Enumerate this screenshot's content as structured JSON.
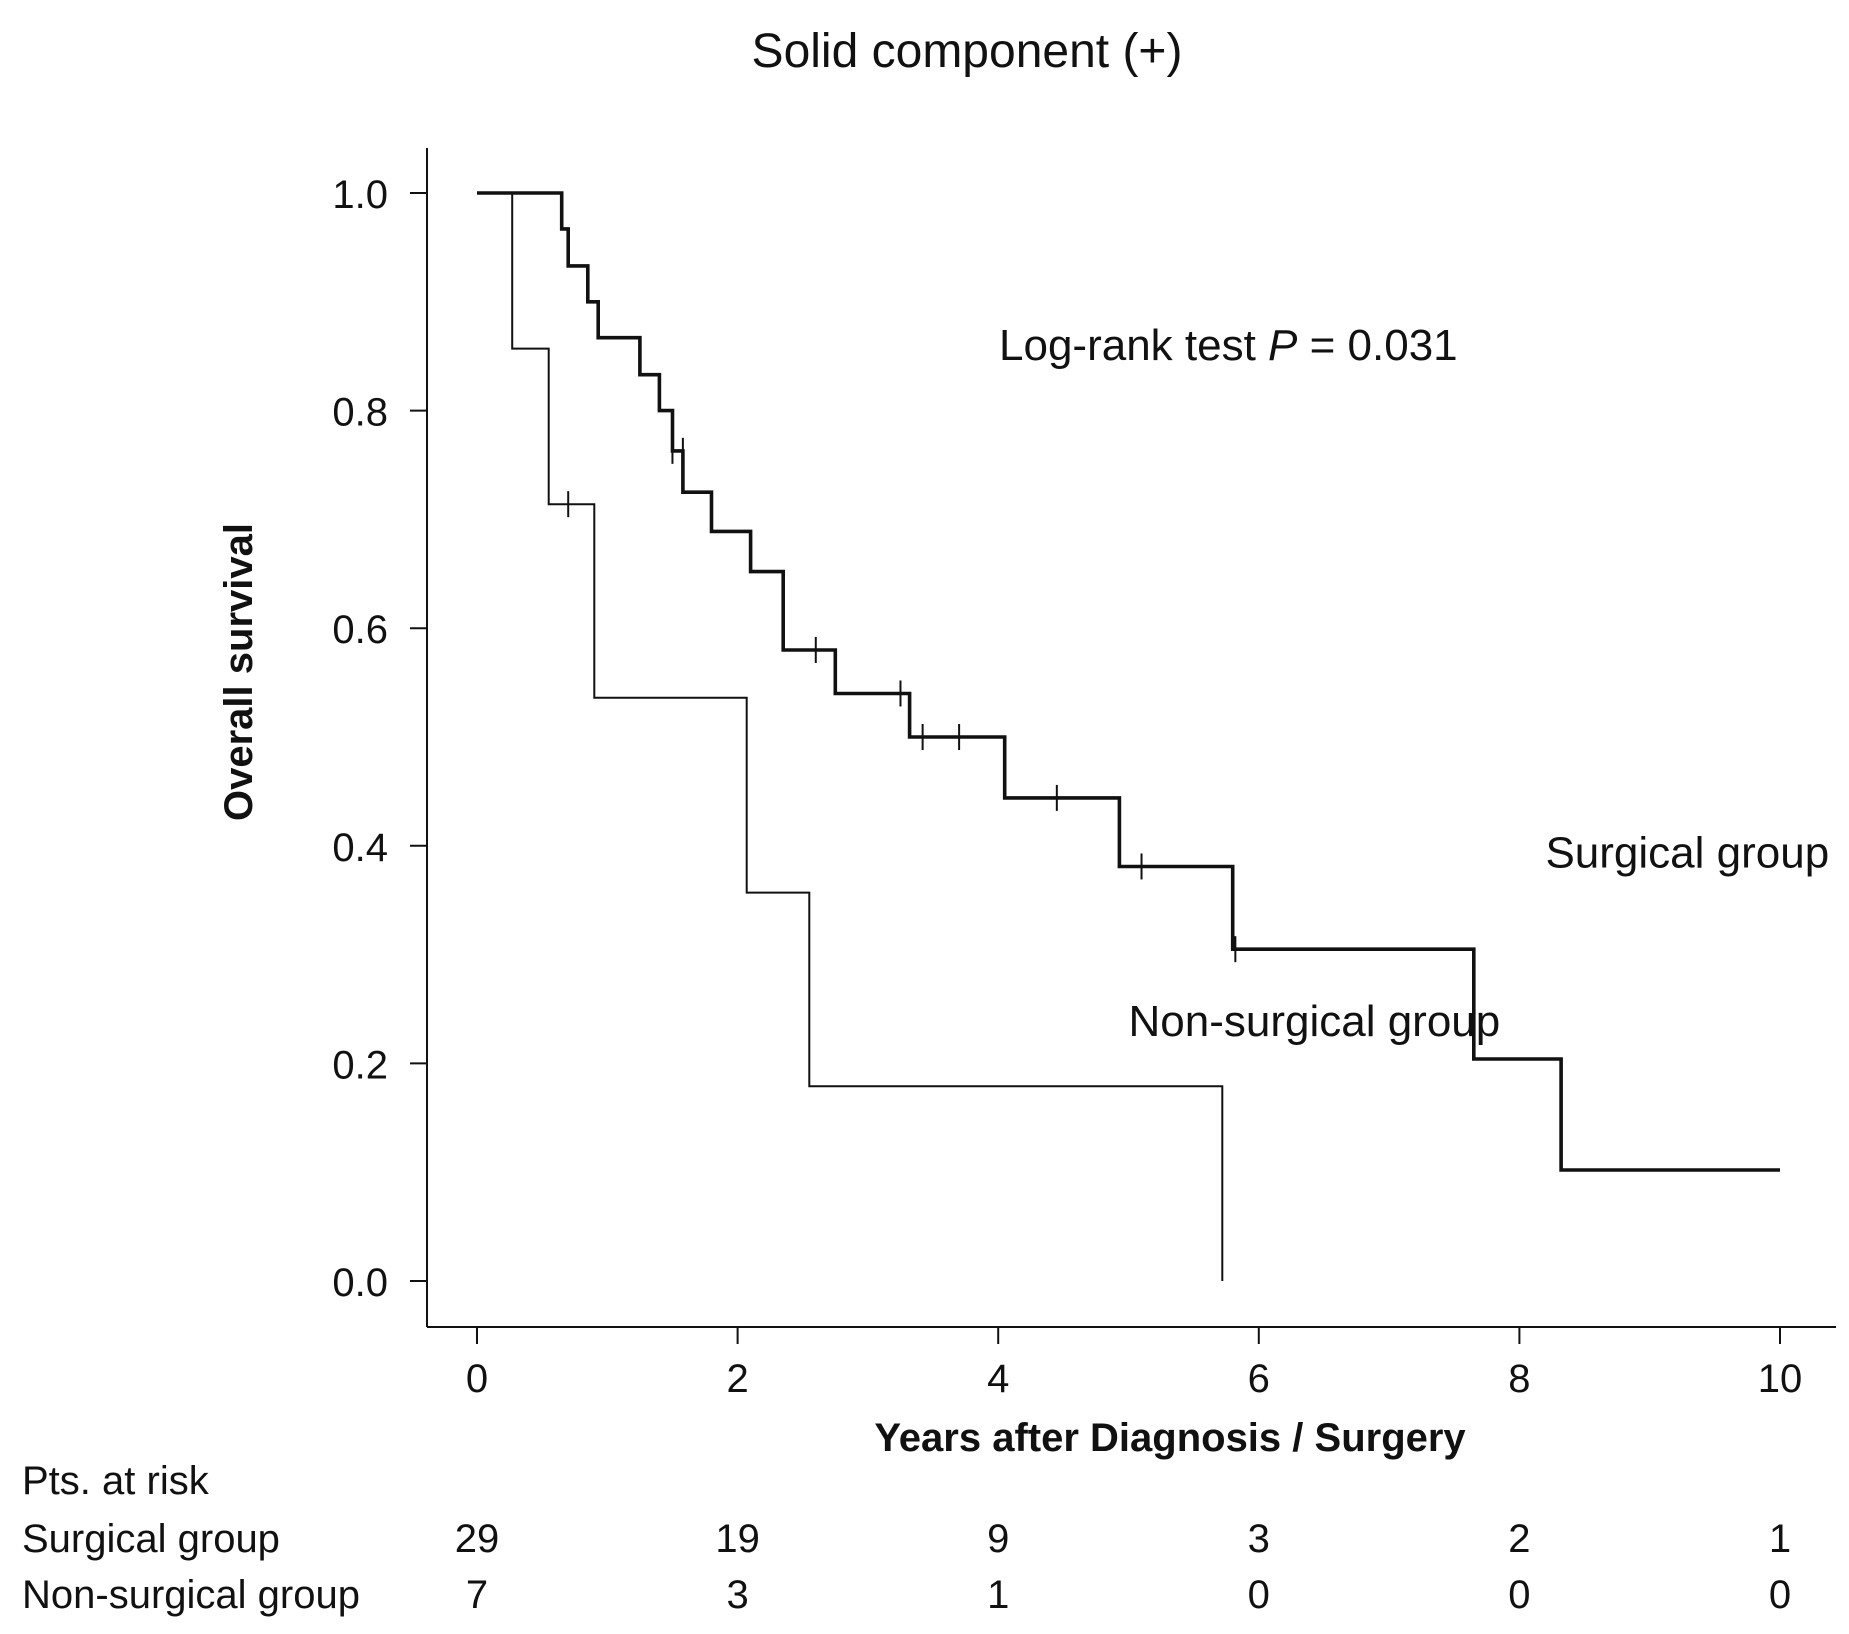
{
  "chart_data": {
    "type": "line",
    "subtype": "kaplan-meier",
    "title": "Solid component (+)",
    "xlabel": "Years after Diagnosis / Surgery",
    "ylabel": "Overall survival",
    "xlim": [
      0,
      10
    ],
    "ylim": [
      0,
      1
    ],
    "xticks": [
      "0",
      "2",
      "4",
      "6",
      "8",
      "10"
    ],
    "yticks": [
      "0.0",
      "0.2",
      "0.4",
      "0.6",
      "0.8",
      "1.0"
    ],
    "grid": false,
    "annotation": {
      "prefix": "Log-rank test ",
      "italic": "P",
      "suffix": " = 0.031"
    },
    "series": [
      {
        "name": "Surgical group",
        "style": "thick",
        "steps": [
          [
            0,
            1.0
          ],
          [
            0.65,
            1.0
          ],
          [
            0.65,
            0.967
          ],
          [
            0.7,
            0.967
          ],
          [
            0.7,
            0.933
          ],
          [
            0.85,
            0.933
          ],
          [
            0.85,
            0.9
          ],
          [
            0.93,
            0.9
          ],
          [
            0.93,
            0.867
          ],
          [
            1.25,
            0.867
          ],
          [
            1.25,
            0.833
          ],
          [
            1.4,
            0.833
          ],
          [
            1.4,
            0.8
          ],
          [
            1.5,
            0.8
          ],
          [
            1.5,
            0.763
          ],
          [
            1.58,
            0.763
          ],
          [
            1.58,
            0.725
          ],
          [
            1.8,
            0.725
          ],
          [
            1.8,
            0.689
          ],
          [
            2.1,
            0.689
          ],
          [
            2.1,
            0.652
          ],
          [
            2.35,
            0.652
          ],
          [
            2.35,
            0.58
          ],
          [
            2.75,
            0.58
          ],
          [
            2.75,
            0.54
          ],
          [
            3.32,
            0.54
          ],
          [
            3.32,
            0.5
          ],
          [
            4.05,
            0.5
          ],
          [
            4.05,
            0.444
          ],
          [
            4.93,
            0.444
          ],
          [
            4.93,
            0.381
          ],
          [
            5.8,
            0.381
          ],
          [
            5.8,
            0.305
          ],
          [
            7.65,
            0.305
          ],
          [
            7.65,
            0.204
          ],
          [
            8.32,
            0.204
          ],
          [
            8.32,
            0.102
          ],
          [
            10.0,
            0.102
          ]
        ],
        "censored": [
          [
            1.5,
            0.763
          ],
          [
            1.58,
            0.763
          ],
          [
            2.6,
            0.58
          ],
          [
            3.25,
            0.54
          ],
          [
            3.42,
            0.5
          ],
          [
            3.7,
            0.5
          ],
          [
            4.45,
            0.444
          ],
          [
            5.1,
            0.381
          ],
          [
            5.82,
            0.305
          ]
        ]
      },
      {
        "name": "Non-surgical group",
        "style": "thin",
        "steps": [
          [
            0,
            1.0
          ],
          [
            0.27,
            1.0
          ],
          [
            0.27,
            0.857
          ],
          [
            0.55,
            0.857
          ],
          [
            0.55,
            0.714
          ],
          [
            0.9,
            0.714
          ],
          [
            0.9,
            0.536
          ],
          [
            2.07,
            0.536
          ],
          [
            2.07,
            0.357
          ],
          [
            2.55,
            0.357
          ],
          [
            2.55,
            0.179
          ],
          [
            5.72,
            0.179
          ],
          [
            5.72,
            0.0
          ]
        ],
        "censored": [
          [
            0.7,
            0.714
          ]
        ]
      }
    ],
    "series_labels": [
      {
        "text": "Surgical group",
        "anchor": [
          8.2,
          0.38
        ]
      },
      {
        "text": "Non-surgical group",
        "anchor": [
          5.0,
          0.225
        ]
      }
    ],
    "risk_table": {
      "header": "Pts. at risk",
      "times": [
        0,
        2,
        4,
        6,
        8,
        10
      ],
      "rows": [
        {
          "label": "Surgical group",
          "values": [
            "29",
            "19",
            "9",
            "3",
            "2",
            "1"
          ]
        },
        {
          "label": "Non-surgical group",
          "values": [
            "7",
            "3",
            "1",
            "0",
            "0",
            "0"
          ]
        }
      ]
    }
  }
}
